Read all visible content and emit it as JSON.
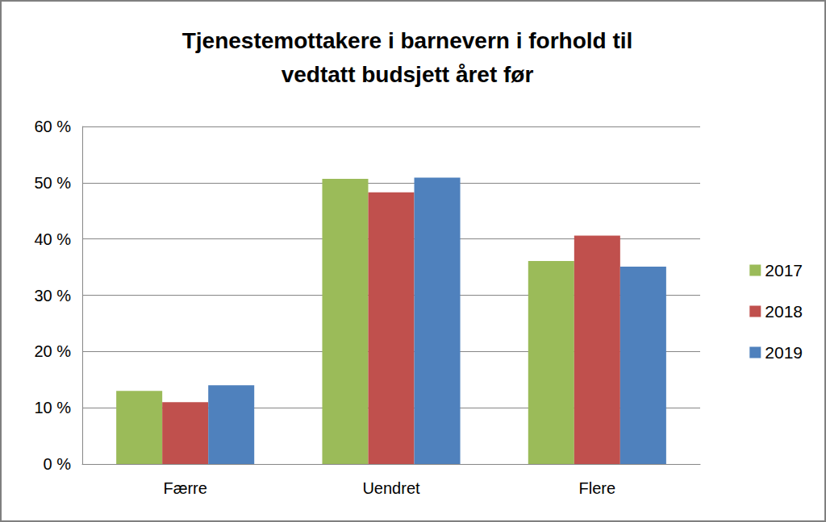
{
  "chart_data": {
    "type": "bar",
    "title": "Tjenestemottakere i barnevern i forhold til\nvedtatt budsjett året før",
    "categories": [
      "Færre",
      "Uendret",
      "Flere"
    ],
    "series": [
      {
        "name": "2017",
        "color": "#9bbb59",
        "values": [
          13,
          50.7,
          36.1
        ]
      },
      {
        "name": "2018",
        "color": "#c0504d",
        "values": [
          11,
          48.3,
          40.6
        ]
      },
      {
        "name": "2019",
        "color": "#4f81bd",
        "values": [
          14,
          50.9,
          35.1
        ]
      }
    ],
    "ylim": [
      0,
      60
    ],
    "yticks": [
      {
        "value": 0,
        "label": "0 %"
      },
      {
        "value": 10,
        "label": "10 %"
      },
      {
        "value": 20,
        "label": "20 %"
      },
      {
        "value": 30,
        "label": "30 %"
      },
      {
        "value": 40,
        "label": "40 %"
      },
      {
        "value": 50,
        "label": "50 %"
      },
      {
        "value": 60,
        "label": "60 %"
      }
    ],
    "grid": true,
    "legend": "right"
  }
}
